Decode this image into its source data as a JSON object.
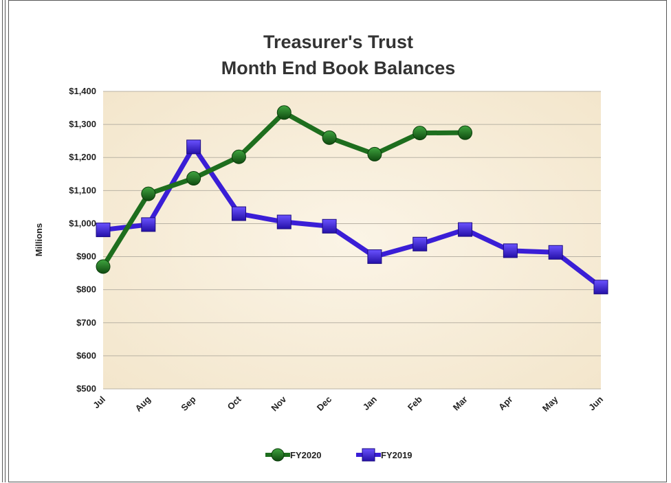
{
  "chart_data": {
    "type": "line",
    "title_line1": "Treasurer's Trust",
    "title_line2": "Month End Book Balances",
    "ylabel": "Millions",
    "xlabel": "",
    "ylim": [
      500,
      1400
    ],
    "yticks": [
      500,
      600,
      700,
      800,
      900,
      1000,
      1100,
      1200,
      1300,
      1400
    ],
    "ytick_labels": [
      "$500",
      "$600",
      "$700",
      "$800",
      "$900",
      "$1,000",
      "$1,100",
      "$1,200",
      "$1,300",
      "$1,400"
    ],
    "categories": [
      "Jul",
      "Aug",
      "Sep",
      "Oct",
      "Nov",
      "Dec",
      "Jan",
      "Feb",
      "Mar",
      "Apr",
      "May",
      "Jun"
    ],
    "grid": true,
    "legend_position": "bottom",
    "series": [
      {
        "name": "FY2020",
        "color": "#1e6e1e",
        "marker": "circle",
        "values": [
          870,
          1090,
          1137,
          1202,
          1336,
          1260,
          1210,
          1274,
          1275,
          null,
          null,
          null
        ]
      },
      {
        "name": "FY2019",
        "color": "#3a1ed6",
        "marker": "square",
        "values": [
          981,
          997,
          1232,
          1030,
          1005,
          992,
          900,
          938,
          982,
          918,
          913,
          808
        ]
      }
    ]
  },
  "colors": {
    "plot_background": "#f8efdc",
    "gridline": "#b8b2a4"
  }
}
